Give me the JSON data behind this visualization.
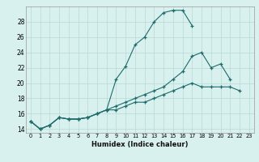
{
  "xlabel": "Humidex (Indice chaleur)",
  "bg_color": "#d8f0ee",
  "grid_color": "#b8d8d4",
  "line_color": "#1e6b6b",
  "xlim": [
    -0.5,
    23.5
  ],
  "ylim": [
    13.5,
    30.0
  ],
  "xtick_labels": [
    "0",
    "1",
    "2",
    "3",
    "4",
    "5",
    "6",
    "7",
    "8",
    "9",
    "10",
    "11",
    "12",
    "13",
    "14",
    "15",
    "16",
    "17",
    "18",
    "19",
    "20",
    "21",
    "22",
    "23"
  ],
  "xtick_vals": [
    0,
    1,
    2,
    3,
    4,
    5,
    6,
    7,
    8,
    9,
    10,
    11,
    12,
    13,
    14,
    15,
    16,
    17,
    18,
    19,
    20,
    21,
    22,
    23
  ],
  "ytick_vals": [
    14,
    16,
    18,
    20,
    22,
    24,
    26,
    28
  ],
  "series1_x": [
    0,
    1,
    2,
    3,
    4,
    5,
    6,
    7,
    8,
    9,
    10,
    11,
    12,
    13,
    14,
    15,
    16,
    17
  ],
  "series1_y": [
    15.0,
    14.0,
    14.5,
    15.5,
    15.3,
    15.3,
    15.5,
    16.0,
    16.5,
    20.5,
    22.2,
    25.0,
    26.0,
    28.0,
    29.2,
    29.5,
    29.5,
    27.5
  ],
  "series2_x": [
    0,
    1,
    2,
    3,
    4,
    5,
    6,
    7,
    8,
    9,
    10,
    11,
    12,
    13,
    14,
    15,
    16,
    17,
    18,
    19,
    20,
    21
  ],
  "series2_y": [
    15.0,
    14.0,
    14.5,
    15.5,
    15.3,
    15.3,
    15.5,
    16.0,
    16.5,
    17.0,
    17.5,
    18.0,
    18.5,
    19.0,
    19.5,
    20.5,
    21.5,
    23.5,
    24.0,
    22.0,
    22.5,
    20.5
  ],
  "series3_x": [
    0,
    1,
    2,
    3,
    4,
    5,
    6,
    7,
    8,
    9,
    10,
    11,
    12,
    13,
    14,
    15,
    16,
    17,
    18,
    19,
    20,
    21,
    22
  ],
  "series3_y": [
    15.0,
    14.0,
    14.5,
    15.5,
    15.3,
    15.3,
    15.5,
    16.0,
    16.5,
    16.5,
    17.0,
    17.5,
    17.5,
    18.0,
    18.5,
    19.0,
    19.5,
    20.0,
    19.5,
    19.5,
    19.5,
    19.5,
    19.0
  ]
}
